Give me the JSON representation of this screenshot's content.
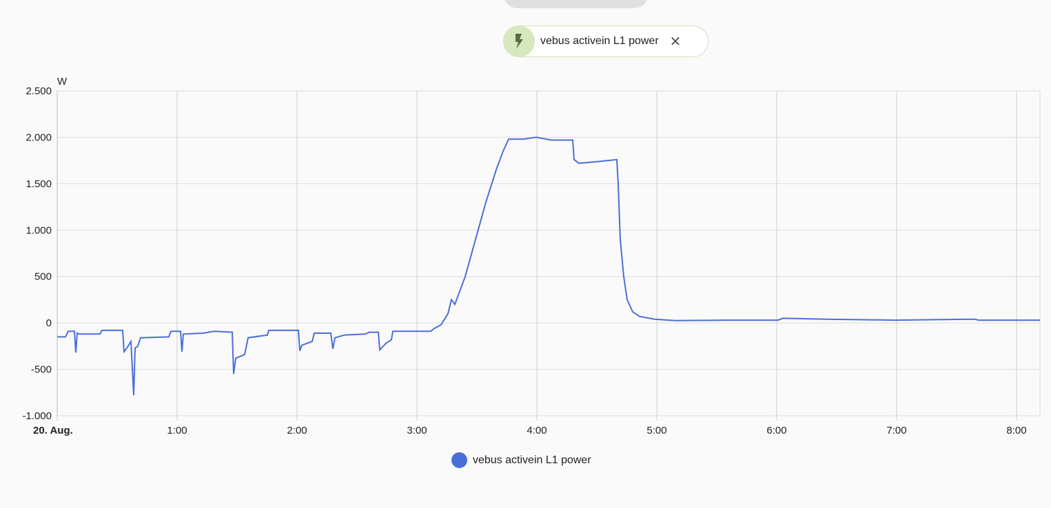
{
  "chip": {
    "label": "vebus activein L1 power",
    "icon": "flash-icon",
    "close_icon": "close-icon"
  },
  "colors": {
    "series": "#4a6ed8",
    "chip_bg": "#d6e8bd",
    "grid": "#dcdcdc"
  },
  "chart_data": {
    "type": "line",
    "title": "",
    "xlabel": "",
    "ylabel": "W",
    "date_label": "20. Aug.",
    "xlim": [
      "0:00:00",
      "8:11:43"
    ],
    "ylim": [
      -1000,
      2500
    ],
    "yticks": [
      -1000,
      -500,
      0,
      500,
      1000,
      1500,
      2000,
      2500
    ],
    "ytick_labels": [
      "-1.000",
      "-500",
      "0",
      "500",
      "1.000",
      "1.500",
      "2.000",
      "2.500"
    ],
    "xticks": [
      "0:00",
      "1:00",
      "2:00",
      "3:00",
      "4:00",
      "5:00",
      "6:00",
      "7:00",
      "8:00"
    ],
    "xtick_labels": [
      "20. Aug.",
      "1:00",
      "2:00",
      "3:00",
      "4:00",
      "5:00",
      "6:00",
      "7:00",
      "8:00"
    ],
    "grid": true,
    "legend": "bottom",
    "series": [
      {
        "name": "vebus activein L1 power",
        "x": [
          "0:00:00",
          "0:04:08",
          "0:05:31",
          "0:08:37",
          "0:09:19",
          "0:10:00",
          "0:11:02",
          "0:21:23",
          "0:22:25",
          "0:32:46",
          "0:33:27",
          "0:35:10",
          "0:36:54",
          "0:38:17",
          "0:38:58",
          "0:40:21",
          "0:41:43",
          "0:55:52",
          "0:56:54",
          "1:01:44",
          "1:02:25",
          "1:03:06",
          "1:13:06",
          "1:18:37",
          "1:27:35",
          "1:28:17",
          "1:29:19",
          "1:33:48",
          "1:35:31",
          "1:45:10",
          "1:45:52",
          "2:00:41",
          "2:01:23",
          "2:02:25",
          "2:07:35",
          "2:08:37",
          "2:16:54",
          "2:17:56",
          "2:18:58",
          "2:23:48",
          "2:34:08",
          "2:36:12",
          "2:40:41",
          "2:41:23",
          "2:44:29",
          "2:47:14",
          "2:47:56",
          "3:06:54",
          "3:08:37",
          "3:12:04",
          "3:15:31",
          "3:17:15",
          "3:18:58",
          "3:24:08",
          "3:29:19",
          "3:34:29",
          "3:39:39",
          "3:43:06",
          "3:45:52",
          "3:53:27",
          "3:59:39",
          "4:07:14",
          "4:17:56",
          "4:18:37",
          "4:21:02",
          "4:31:23",
          "4:40:00",
          "4:40:41",
          "4:41:43",
          "4:43:27",
          "4:45:10",
          "4:47:56",
          "4:51:23",
          "4:58:58",
          "5:09:19",
          "5:33:27",
          "6:00:41",
          "6:03:06",
          "6:25:10",
          "6:59:39",
          "7:38:58",
          "7:41:02",
          "8:11:43"
        ],
        "y": [
          -150,
          -150,
          -90,
          -90,
          -320,
          -110,
          -120,
          -120,
          -80,
          -80,
          -310,
          -260,
          -200,
          -780,
          -270,
          -250,
          -160,
          -150,
          -90,
          -90,
          -310,
          -120,
          -110,
          -90,
          -100,
          -550,
          -380,
          -340,
          -160,
          -130,
          -80,
          -80,
          -300,
          -240,
          -200,
          -110,
          -110,
          -280,
          -160,
          -130,
          -120,
          -100,
          -100,
          -290,
          -220,
          -180,
          -90,
          -90,
          -60,
          -20,
          100,
          250,
          200,
          500,
          900,
          1300,
          1650,
          1850,
          1980,
          1980,
          2000,
          1970,
          1970,
          1760,
          1720,
          1740,
          1760,
          1500,
          900,
          500,
          250,
          120,
          70,
          40,
          25,
          30,
          30,
          50,
          40,
          30,
          40,
          30,
          30
        ]
      }
    ]
  }
}
